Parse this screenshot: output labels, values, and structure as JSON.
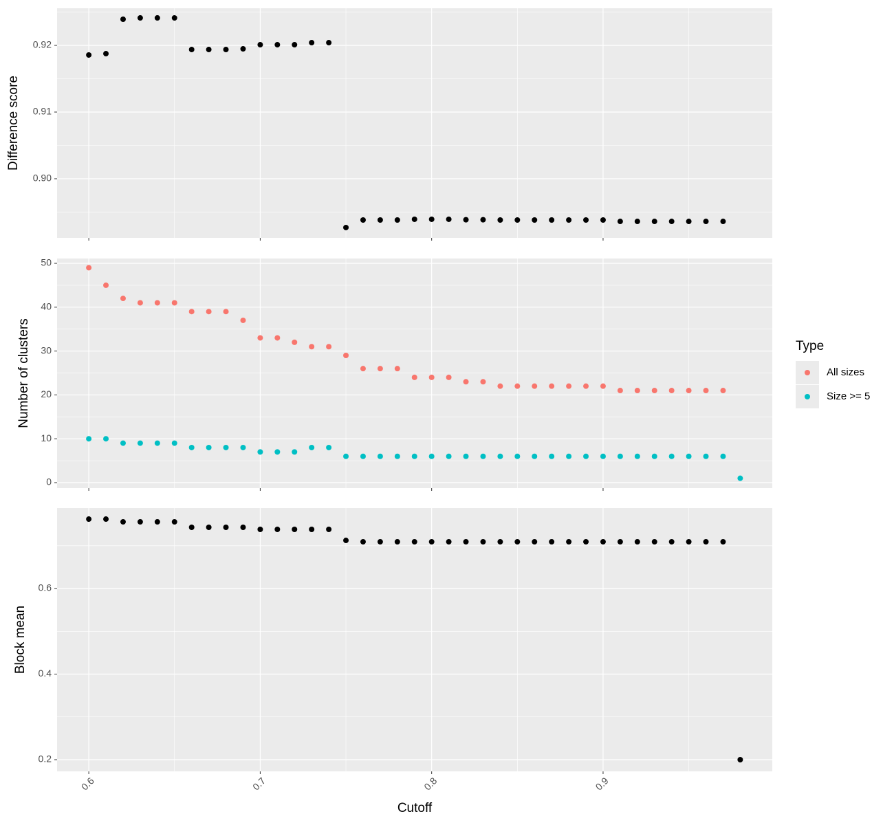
{
  "chart_data": [
    {
      "type": "scatter",
      "ylabel": "Difference score",
      "x": [
        0.6,
        0.61,
        0.62,
        0.63,
        0.64,
        0.65,
        0.66,
        0.67,
        0.68,
        0.69,
        0.7,
        0.71,
        0.72,
        0.73,
        0.74,
        0.75,
        0.76,
        0.77,
        0.78,
        0.79,
        0.8,
        0.81,
        0.82,
        0.83,
        0.84,
        0.85,
        0.86,
        0.87,
        0.88,
        0.89,
        0.9,
        0.91,
        0.92,
        0.93,
        0.94,
        0.95,
        0.96,
        0.97
      ],
      "series": [
        {
          "color": "#000000",
          "values": [
            0.91856,
            0.91876,
            0.92392,
            0.92412,
            0.92412,
            0.92412,
            0.91938,
            0.91938,
            0.91938,
            0.91948,
            0.9201,
            0.9201,
            0.9201,
            0.92041,
            0.92041,
            0.89268,
            0.89381,
            0.89381,
            0.89381,
            0.89392,
            0.89392,
            0.89392,
            0.89385,
            0.89385,
            0.89381,
            0.89381,
            0.89381,
            0.89381,
            0.89381,
            0.89381,
            0.89381,
            0.8936,
            0.8936,
            0.8936,
            0.8936,
            0.8936,
            0.8936,
            0.8936
          ]
        }
      ],
      "xlim": [
        0.5815,
        0.9987
      ],
      "xticks": [
        0.6,
        0.7,
        0.8,
        0.9
      ],
      "ylim": [
        0.89113,
        0.92557
      ],
      "yticks": [
        {
          "value": 0.9,
          "label": "0.90"
        },
        0.91,
        0.92
      ],
      "grid": true
    },
    {
      "type": "scatter",
      "ylabel": "Number of clusters",
      "legend_title": "Type",
      "legend": "right",
      "x": [
        0.6,
        0.61,
        0.62,
        0.63,
        0.64,
        0.65,
        0.66,
        0.67,
        0.68,
        0.69,
        0.7,
        0.71,
        0.72,
        0.73,
        0.74,
        0.75,
        0.76,
        0.77,
        0.78,
        0.79,
        0.8,
        0.81,
        0.82,
        0.83,
        0.84,
        0.85,
        0.86,
        0.87,
        0.88,
        0.89,
        0.9,
        0.91,
        0.92,
        0.93,
        0.94,
        0.95,
        0.96,
        0.97,
        0.98
      ],
      "series": [
        {
          "name": "All sizes",
          "color": "#F8766D",
          "values": [
            49,
            45,
            42,
            41,
            41,
            41,
            39,
            39,
            39,
            37,
            33,
            33,
            32,
            31,
            31,
            29,
            26,
            26,
            26,
            24,
            24,
            24,
            23,
            23,
            22,
            22,
            22,
            22,
            22,
            22,
            22,
            21,
            21,
            21,
            21,
            21,
            21,
            21,
            null
          ]
        },
        {
          "name": "Size >= 5",
          "color": "#00BFC4",
          "values": [
            10,
            10,
            9,
            9,
            9,
            9,
            8,
            8,
            8,
            8,
            7,
            7,
            7,
            8,
            8,
            6,
            6,
            6,
            6,
            6,
            6,
            6,
            6,
            6,
            6,
            6,
            6,
            6,
            6,
            6,
            6,
            6,
            6,
            6,
            6,
            6,
            6,
            6,
            1
          ]
        }
      ],
      "xlim": [
        0.5815,
        0.9987
      ],
      "xticks": [
        0.6,
        0.7,
        0.8,
        0.9
      ],
      "ylim": [
        -1.25,
        51.1
      ],
      "yticks": [
        0,
        10,
        20,
        30,
        40,
        50
      ],
      "grid": true
    },
    {
      "type": "scatter",
      "ylabel": "Block mean",
      "xlabel": "Cutoff",
      "x": [
        0.6,
        0.61,
        0.62,
        0.63,
        0.64,
        0.65,
        0.66,
        0.67,
        0.68,
        0.69,
        0.7,
        0.71,
        0.72,
        0.73,
        0.74,
        0.75,
        0.76,
        0.77,
        0.78,
        0.79,
        0.8,
        0.81,
        0.82,
        0.83,
        0.84,
        0.85,
        0.86,
        0.87,
        0.88,
        0.89,
        0.9,
        0.91,
        0.92,
        0.93,
        0.94,
        0.95,
        0.96,
        0.97,
        0.98
      ],
      "series": [
        {
          "color": "#000000",
          "values": [
            0.7622,
            0.7622,
            0.7558,
            0.7558,
            0.7558,
            0.7558,
            0.743,
            0.743,
            0.743,
            0.743,
            0.7382,
            0.7382,
            0.7382,
            0.7382,
            0.7382,
            0.7124,
            0.7092,
            0.7092,
            0.7092,
            0.7092,
            0.7092,
            0.7092,
            0.7092,
            0.7092,
            0.7092,
            0.7092,
            0.7092,
            0.7092,
            0.7092,
            0.7092,
            0.7092,
            0.7092,
            0.7092,
            0.7092,
            0.7092,
            0.7092,
            0.7092,
            0.7092,
            0.2
          ]
        }
      ],
      "xlim": [
        0.5815,
        0.9987
      ],
      "xticks": [
        0.6,
        0.7,
        0.8,
        0.9
      ],
      "ylim": [
        0.1727,
        0.788
      ],
      "yticks": [
        0.2,
        0.4,
        0.6
      ],
      "grid": true
    }
  ]
}
